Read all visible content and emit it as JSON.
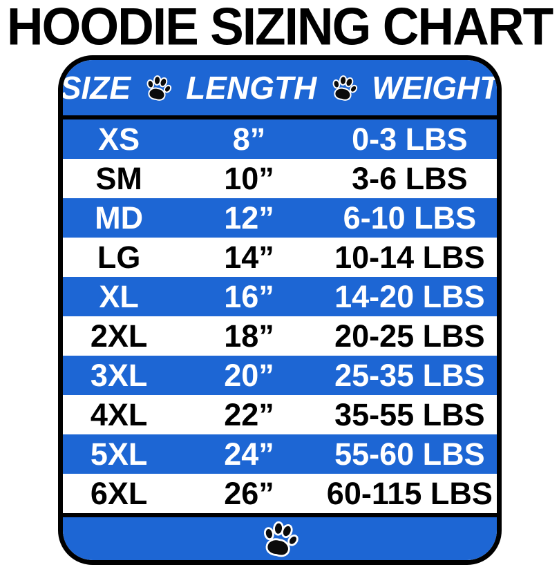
{
  "page_title": "HOODIE SIZING CHART",
  "colors": {
    "accent_blue": "#1d66d4",
    "border_black": "#000000",
    "background_white": "#ffffff",
    "text_on_blue": "#ffffff",
    "text_on_white": "#000000"
  },
  "icons": {
    "header_icons": [
      "paw-icon",
      "paw-icon"
    ],
    "footer_icon": "paw-icon"
  },
  "chart_data": {
    "type": "table",
    "title": "HOODIE SIZING CHART",
    "columns": [
      "SIZE",
      "LENGTH",
      "WEIGHT"
    ],
    "rows": [
      [
        "XS",
        "8”",
        "0-3 LBS"
      ],
      [
        "SM",
        "10”",
        "3-6 LBS"
      ],
      [
        "MD",
        "12”",
        "6-10 LBS"
      ],
      [
        "LG",
        "14”",
        "10-14 LBS"
      ],
      [
        "XL",
        "16”",
        "14-20 LBS"
      ],
      [
        "2XL",
        "18”",
        "20-25 LBS"
      ],
      [
        "3XL",
        "20”",
        "25-35 LBS"
      ],
      [
        "4XL",
        "22”",
        "35-55 LBS"
      ],
      [
        "5XL",
        "24”",
        "55-60 LBS"
      ],
      [
        "6XL",
        "26”",
        "60-115 LBS"
      ]
    ],
    "layout_hints": {
      "row_striping": "alternating blue/white starting with blue",
      "header_background": "blue",
      "footer_background": "blue"
    }
  }
}
